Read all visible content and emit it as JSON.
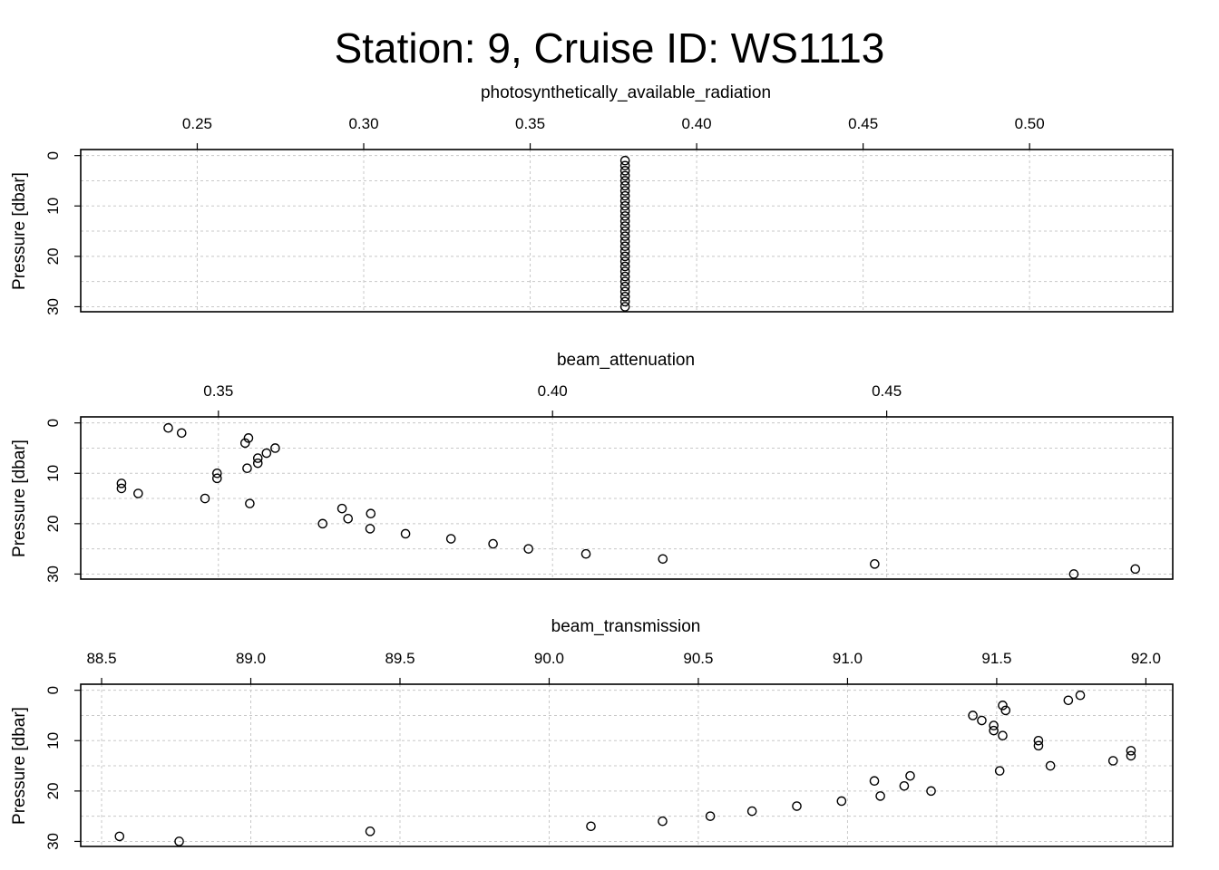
{
  "title": "Station: 9, Cruise ID: WS1113",
  "chart_data": [
    {
      "type": "scatter",
      "xlabel": "photosynthetically_available_radiation",
      "ylabel": "Pressure [dbar]",
      "x_ticks": [
        0.25,
        0.3,
        0.35,
        0.4,
        0.45,
        0.5
      ],
      "x_tick_labels": [
        "0.25",
        "0.30",
        "0.35",
        "0.40",
        "0.45",
        "0.50"
      ],
      "y_ticks": [
        0,
        10,
        20,
        30
      ],
      "y_tick_labels": [
        "0",
        "10",
        "20",
        "30"
      ],
      "xlim": [
        0.215,
        0.543
      ],
      "ylim": [
        31,
        -1.2
      ],
      "grid": true,
      "points": [
        {
          "x": 0.3785,
          "y": 1
        },
        {
          "x": 0.3785,
          "y": 2
        },
        {
          "x": 0.3785,
          "y": 3
        },
        {
          "x": 0.3785,
          "y": 4
        },
        {
          "x": 0.3785,
          "y": 5
        },
        {
          "x": 0.3785,
          "y": 6
        },
        {
          "x": 0.3785,
          "y": 7
        },
        {
          "x": 0.3785,
          "y": 8
        },
        {
          "x": 0.3785,
          "y": 9
        },
        {
          "x": 0.3785,
          "y": 10
        },
        {
          "x": 0.3785,
          "y": 11
        },
        {
          "x": 0.3785,
          "y": 12
        },
        {
          "x": 0.3785,
          "y": 13
        },
        {
          "x": 0.3785,
          "y": 14
        },
        {
          "x": 0.3785,
          "y": 15
        },
        {
          "x": 0.3785,
          "y": 16
        },
        {
          "x": 0.3785,
          "y": 17
        },
        {
          "x": 0.3785,
          "y": 18
        },
        {
          "x": 0.3785,
          "y": 19
        },
        {
          "x": 0.3785,
          "y": 20
        },
        {
          "x": 0.3785,
          "y": 21
        },
        {
          "x": 0.3785,
          "y": 22
        },
        {
          "x": 0.3785,
          "y": 23
        },
        {
          "x": 0.3785,
          "y": 24
        },
        {
          "x": 0.3785,
          "y": 25
        },
        {
          "x": 0.3785,
          "y": 26
        },
        {
          "x": 0.3785,
          "y": 27
        },
        {
          "x": 0.3785,
          "y": 28
        },
        {
          "x": 0.3785,
          "y": 29
        },
        {
          "x": 0.3785,
          "y": 30
        }
      ]
    },
    {
      "type": "scatter",
      "xlabel": "beam_attenuation",
      "ylabel": "Pressure [dbar]",
      "x_ticks": [
        0.35,
        0.4,
        0.45
      ],
      "x_tick_labels": [
        "0.35",
        "0.40",
        "0.45"
      ],
      "y_ticks": [
        0,
        10,
        20,
        30
      ],
      "y_tick_labels": [
        "0",
        "10",
        "20",
        "30"
      ],
      "xlim": [
        0.3294,
        0.4928
      ],
      "ylim": [
        31,
        -1.2
      ],
      "grid": true,
      "points": [
        {
          "x": 0.3425,
          "y": 1
        },
        {
          "x": 0.3445,
          "y": 2
        },
        {
          "x": 0.3545,
          "y": 3
        },
        {
          "x": 0.354,
          "y": 4
        },
        {
          "x": 0.3585,
          "y": 5
        },
        {
          "x": 0.3572,
          "y": 6
        },
        {
          "x": 0.3559,
          "y": 7
        },
        {
          "x": 0.3559,
          "y": 8
        },
        {
          "x": 0.3543,
          "y": 9
        },
        {
          "x": 0.3498,
          "y": 10
        },
        {
          "x": 0.3498,
          "y": 11
        },
        {
          "x": 0.3355,
          "y": 12
        },
        {
          "x": 0.3355,
          "y": 13
        },
        {
          "x": 0.338,
          "y": 14
        },
        {
          "x": 0.348,
          "y": 15
        },
        {
          "x": 0.3547,
          "y": 16
        },
        {
          "x": 0.3685,
          "y": 17
        },
        {
          "x": 0.3728,
          "y": 18
        },
        {
          "x": 0.3694,
          "y": 19
        },
        {
          "x": 0.3656,
          "y": 20
        },
        {
          "x": 0.3727,
          "y": 21
        },
        {
          "x": 0.378,
          "y": 22
        },
        {
          "x": 0.3848,
          "y": 23
        },
        {
          "x": 0.3911,
          "y": 24
        },
        {
          "x": 0.3964,
          "y": 25
        },
        {
          "x": 0.405,
          "y": 26
        },
        {
          "x": 0.4165,
          "y": 27
        },
        {
          "x": 0.4482,
          "y": 28
        },
        {
          "x": 0.4872,
          "y": 29
        },
        {
          "x": 0.478,
          "y": 30
        }
      ]
    },
    {
      "type": "scatter",
      "xlabel": "beam_transmission",
      "ylabel": "Pressure [dbar]",
      "x_ticks": [
        88.5,
        89.0,
        89.5,
        90.0,
        90.5,
        91.0,
        91.5,
        92.0
      ],
      "x_tick_labels": [
        "88.5",
        "89.0",
        "89.5",
        "90.0",
        "90.5",
        "91.0",
        "91.5",
        "92.0"
      ],
      "y_ticks": [
        0,
        10,
        20,
        30
      ],
      "y_tick_labels": [
        "0",
        "10",
        "20",
        "30"
      ],
      "xlim": [
        88.43,
        92.09
      ],
      "ylim": [
        31,
        -1.2
      ],
      "grid": true,
      "points": [
        {
          "x": 91.78,
          "y": 1
        },
        {
          "x": 91.74,
          "y": 2
        },
        {
          "x": 91.52,
          "y": 3
        },
        {
          "x": 91.53,
          "y": 4
        },
        {
          "x": 91.42,
          "y": 5
        },
        {
          "x": 91.45,
          "y": 6
        },
        {
          "x": 91.49,
          "y": 7
        },
        {
          "x": 91.49,
          "y": 8
        },
        {
          "x": 91.52,
          "y": 9
        },
        {
          "x": 91.64,
          "y": 10
        },
        {
          "x": 91.64,
          "y": 11
        },
        {
          "x": 91.95,
          "y": 12
        },
        {
          "x": 91.95,
          "y": 13
        },
        {
          "x": 91.89,
          "y": 14
        },
        {
          "x": 91.68,
          "y": 15
        },
        {
          "x": 91.51,
          "y": 16
        },
        {
          "x": 91.21,
          "y": 17
        },
        {
          "x": 91.09,
          "y": 18
        },
        {
          "x": 91.19,
          "y": 19
        },
        {
          "x": 91.28,
          "y": 20
        },
        {
          "x": 91.11,
          "y": 21
        },
        {
          "x": 90.98,
          "y": 22
        },
        {
          "x": 90.83,
          "y": 23
        },
        {
          "x": 90.68,
          "y": 24
        },
        {
          "x": 90.54,
          "y": 25
        },
        {
          "x": 90.38,
          "y": 26
        },
        {
          "x": 90.14,
          "y": 27
        },
        {
          "x": 89.4,
          "y": 28
        },
        {
          "x": 88.56,
          "y": 29
        },
        {
          "x": 88.76,
          "y": 30
        }
      ]
    }
  ]
}
